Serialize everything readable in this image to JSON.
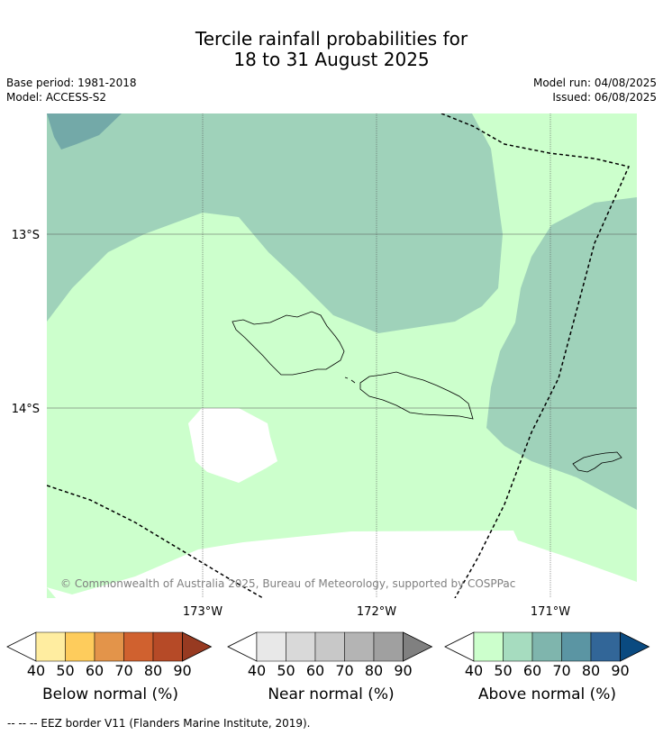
{
  "title_line1": "Tercile rainfall probabilities for",
  "title_line2": "18 to 31 August 2025",
  "base_period": "Base period: 1981-2018",
  "model": "Model: ACCESS-S2",
  "model_run": "Model run: 04/08/2025",
  "issued": "Issued: 06/08/2025",
  "copyright": "© Commonwealth of Australia 2025, Bureau of Meteorology, supported by COSPPac",
  "lat_labels": [
    "13°S",
    "14°S"
  ],
  "lon_labels": [
    "173°W",
    "172°W",
    "171°W"
  ],
  "colorbars": [
    {
      "label": "Below normal (%)",
      "ticks": [
        "40",
        "50",
        "60",
        "70",
        "80",
        "90"
      ],
      "colors": [
        "#ffeda0",
        "#fecc5c",
        "#e3944a",
        "#d0612f",
        "#b64a27",
        "#973a21"
      ]
    },
    {
      "label": "Near normal (%)",
      "ticks": [
        "40",
        "50",
        "60",
        "70",
        "80",
        "90"
      ],
      "colors": [
        "#e8e8e8",
        "#d9d9d9",
        "#c8c8c8",
        "#b4b4b4",
        "#a0a0a0",
        "#808080"
      ]
    },
    {
      "label": "Above normal (%)",
      "ticks": [
        "40",
        "50",
        "60",
        "70",
        "80",
        "90"
      ],
      "colors": [
        "#ccffcc",
        "#a6dcbf",
        "#7fb5ad",
        "#5b95a3",
        "#326698",
        "#0a4a80"
      ]
    }
  ],
  "footnote": "--  --  -- EEZ border V11 (Flanders Marine Institute, 2019).",
  "colors": {
    "above_40": "#ccffcc",
    "above_50": "#9fd2ba",
    "above_60": "#73a9a8"
  }
}
